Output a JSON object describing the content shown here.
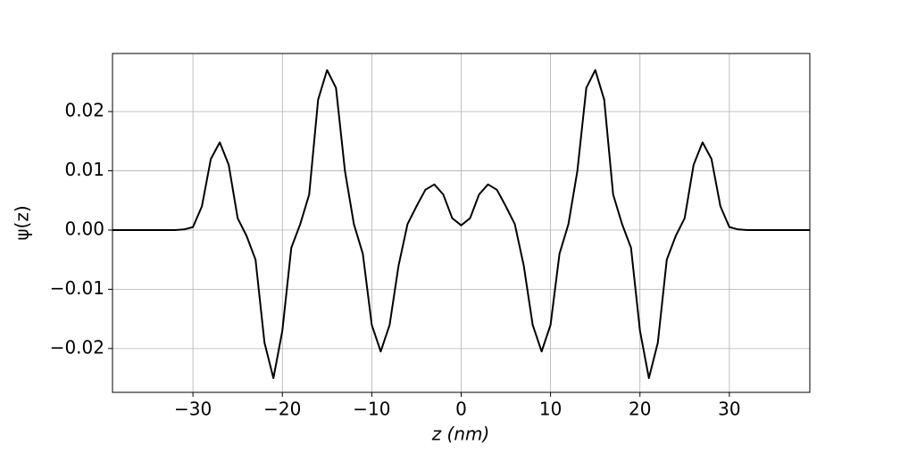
{
  "chart_data": {
    "type": "line",
    "xlabel": "z (nm)",
    "ylabel": "ψ(z)",
    "x": [
      -39,
      -38,
      -37,
      -36,
      -35,
      -34,
      -33,
      -32,
      -31,
      -30,
      -29,
      -28,
      -27,
      -26,
      -25,
      -24,
      -23,
      -22,
      -21,
      -20,
      -19,
      -18,
      -17,
      -16,
      -15,
      -14,
      -13,
      -12,
      -11,
      -10,
      -9,
      -8,
      -7,
      -6,
      -5,
      -4,
      -3,
      -2,
      -1,
      0,
      1,
      2,
      3,
      4,
      5,
      6,
      7,
      8,
      9,
      10,
      11,
      12,
      13,
      14,
      15,
      16,
      17,
      18,
      19,
      20,
      21,
      22,
      23,
      24,
      25,
      26,
      27,
      28,
      29,
      30,
      31,
      32,
      33,
      34,
      35,
      36,
      37,
      38,
      39
    ],
    "values": [
      0,
      0,
      0,
      0,
      0,
      0,
      0,
      0,
      0.0001,
      0.0005,
      0.004,
      0.012,
      0.0148,
      0.011,
      0.002,
      -0.001,
      -0.005,
      -0.019,
      -0.025,
      -0.017,
      -0.003,
      0.001,
      0.006,
      0.022,
      0.027,
      0.024,
      0.01,
      0.001,
      -0.004,
      -0.016,
      -0.0205,
      -0.016,
      -0.006,
      0.001,
      0.004,
      0.0068,
      0.0077,
      0.006,
      0.002,
      0.0008,
      0.002,
      0.006,
      0.0077,
      0.0068,
      0.004,
      0.001,
      -0.006,
      -0.016,
      -0.0205,
      -0.016,
      -0.004,
      0.001,
      0.01,
      0.024,
      0.027,
      0.022,
      0.006,
      0.001,
      -0.003,
      -0.017,
      -0.025,
      -0.019,
      -0.005,
      -0.001,
      0.002,
      0.011,
      0.0148,
      0.012,
      0.004,
      0.0005,
      0.0001,
      0,
      0,
      0,
      0,
      0,
      0,
      0,
      0
    ],
    "color": "#000000",
    "xlim": [
      -39,
      39
    ],
    "ylim": [
      -0.0274,
      0.0298
    ],
    "xticks": [
      {
        "value": -30,
        "label": "−30"
      },
      {
        "value": -20,
        "label": "−20"
      },
      {
        "value": -10,
        "label": "−10"
      },
      0,
      10,
      20,
      30
    ],
    "yticks": [
      {
        "value": -0.02,
        "label": "−0.02"
      },
      {
        "value": -0.01,
        "label": "−0.01"
      },
      {
        "value": 0,
        "label": "0.00"
      },
      0.01,
      0.02
    ],
    "grid": true
  }
}
